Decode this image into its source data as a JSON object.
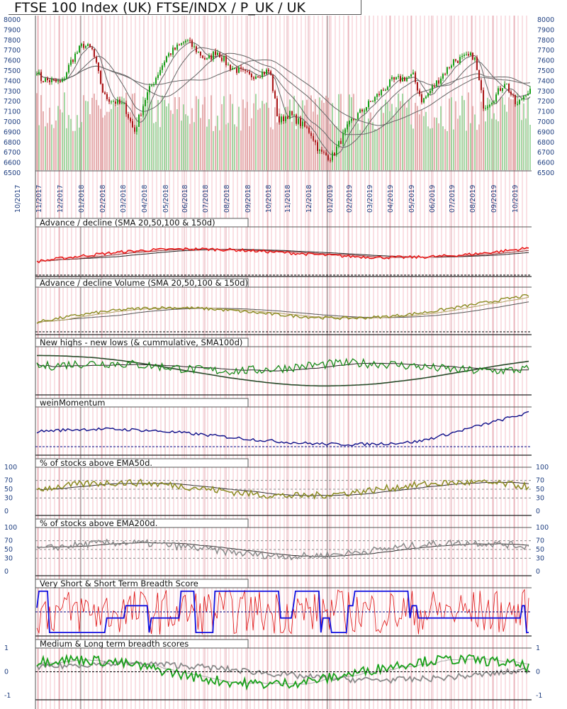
{
  "title": "FTSE 100 Index (UK) FTSE/INDX / P_UK / UK",
  "colors": {
    "up_candle": "#1aa01a",
    "down_candle": "#aa1818",
    "ad_line": "#e81010",
    "adv_line": "#8a8a20",
    "nhnl_line": "#1a8a1a",
    "wein_line": "#10108a",
    "ema200_line": "#8a8a8a",
    "breadth_short": "#1010e0",
    "breadth_vshort": "#e01010",
    "breadth_medium": "#1aa01a",
    "breadth_long": "#8a8a8a",
    "ref_line": "#000080"
  },
  "chart_data": [
    {
      "type": "candlestick",
      "title": "FTSE 100 Index (UK) FTSE/INDX / P_UK / UK",
      "x_ticks": [
        "10/2017",
        "11/2017",
        "12/2017",
        "01/2018",
        "02/2018",
        "03/2018",
        "04/2018",
        "05/2018",
        "06/2018",
        "07/2018",
        "08/2018",
        "09/2018",
        "10/2018",
        "11/2018",
        "12/2018",
        "01/2019",
        "02/2019",
        "03/2019",
        "04/2019",
        "05/2019",
        "06/2019",
        "07/2019",
        "08/2019",
        "09/2019",
        "10/2019"
      ],
      "y_ticks": [
        6500,
        6600,
        6700,
        6800,
        6900,
        7000,
        7100,
        7200,
        7300,
        7400,
        7500,
        7600,
        7700,
        7800,
        7900,
        8000
      ],
      "ylim": [
        6500,
        8000
      ],
      "overlays": [
        "SMA 20",
        "SMA 50",
        "SMA 100",
        "SMA 150"
      ],
      "close_path": [
        [
          "10/2017",
          7510
        ],
        [
          "11/2017",
          7420
        ],
        [
          "12/2017",
          7380
        ],
        [
          "12/2017",
          7600
        ],
        [
          "01/2018",
          7760
        ],
        [
          "01/2018",
          7700
        ],
        [
          "02/2018",
          7250
        ],
        [
          "03/2018",
          7150
        ],
        [
          "03/2018",
          6900
        ],
        [
          "04/2018",
          7250
        ],
        [
          "05/2018",
          7650
        ],
        [
          "06/2018",
          7800
        ],
        [
          "07/2018",
          7600
        ],
        [
          "07/2018",
          7700
        ],
        [
          "08/2018",
          7550
        ],
        [
          "09/2018",
          7450
        ],
        [
          "10/2018",
          7500
        ],
        [
          "10/2018",
          7000
        ],
        [
          "11/2018",
          7080
        ],
        [
          "12/2018",
          6900
        ],
        [
          "12/2018",
          6700
        ],
        [
          "01/2019",
          6650
        ],
        [
          "02/2019",
          7000
        ],
        [
          "03/2019",
          7200
        ],
        [
          "04/2019",
          7400
        ],
        [
          "05/2019",
          7450
        ],
        [
          "05/2019",
          7200
        ],
        [
          "06/2019",
          7350
        ],
        [
          "07/2019",
          7600
        ],
        [
          "08/2019",
          7650
        ],
        [
          "08/2019",
          7150
        ],
        [
          "09/2019",
          7250
        ],
        [
          "09/2019",
          7400
        ],
        [
          "10/2019",
          7150
        ],
        [
          "10/2019",
          7300
        ]
      ]
    },
    {
      "type": "line",
      "title": "Advance / decline (SMA 20,50,100 & 150d)"
    },
    {
      "type": "line",
      "title": "Advance / decline Volume (SMA 20,50,100 & 150d)"
    },
    {
      "type": "line",
      "title": "New highs - new lows (& cummulative, SMA100d)"
    },
    {
      "type": "line",
      "title": "weinMomentum"
    },
    {
      "type": "line",
      "title": "% of stocks above EMA50d.",
      "y_ticks": [
        0,
        30,
        50,
        70,
        100
      ]
    },
    {
      "type": "line",
      "title": "% of stocks above EMA200d.",
      "y_ticks": [
        0,
        30,
        50,
        70,
        100
      ]
    },
    {
      "type": "line",
      "title": "Very Short & Short Term Breadth Score"
    },
    {
      "type": "line",
      "title": "Medium & Long term breadth scores",
      "y_ticks": [
        -1,
        0,
        1
      ]
    }
  ]
}
